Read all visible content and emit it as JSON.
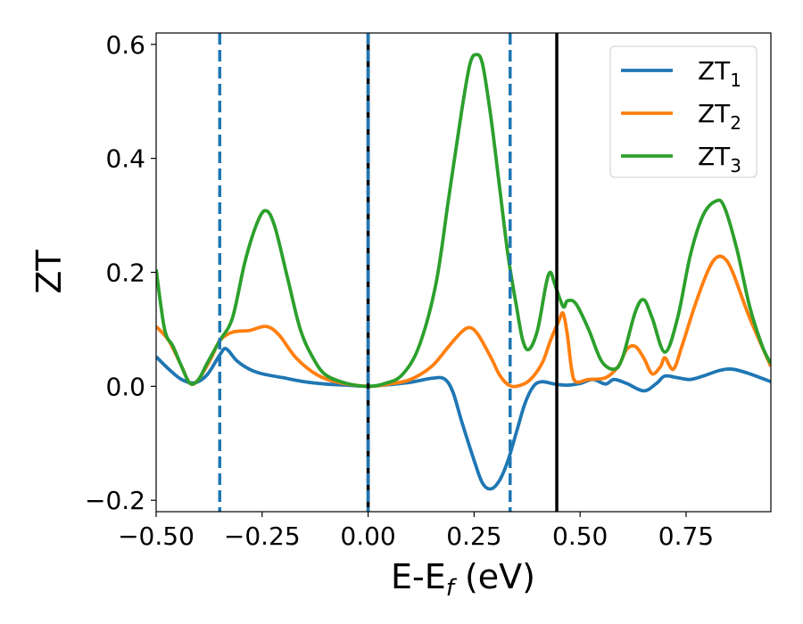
{
  "chart_data": {
    "type": "line",
    "xlabel": {
      "main": "E-E",
      "sub": "f",
      "rest": " (eV)"
    },
    "ylabel": "ZT",
    "xlim": [
      -0.5,
      0.95
    ],
    "ylim": [
      -0.22,
      0.62
    ],
    "xticks": [
      -0.5,
      -0.25,
      0.0,
      0.25,
      0.5,
      0.75
    ],
    "xtick_labels": [
      "−0.50",
      "−0.25",
      "0.00",
      "0.25",
      "0.50",
      "0.75"
    ],
    "yticks": [
      -0.2,
      0.0,
      0.2,
      0.4,
      0.6
    ],
    "ytick_labels": [
      "−0.2",
      "0.0",
      "0.2",
      "0.4",
      "0.6"
    ],
    "grid": false,
    "legend_position": "top-right",
    "vlines": [
      {
        "x": -0.35,
        "style": "dashed",
        "color": "#1f77b4"
      },
      {
        "x": 0.0,
        "style": "solid",
        "color": "#000000"
      },
      {
        "x": 0.0,
        "style": "dashed",
        "color": "#1f77b4"
      },
      {
        "x": 0.335,
        "style": "dashed",
        "color": "#1f77b4"
      },
      {
        "x": 0.445,
        "style": "solid",
        "color": "#000000"
      }
    ],
    "series": [
      {
        "name": "ZT",
        "sub": "1",
        "color": "#1f77b4",
        "points": [
          [
            -0.5,
            0.052
          ],
          [
            -0.47,
            0.03
          ],
          [
            -0.44,
            0.012
          ],
          [
            -0.41,
            0.006
          ],
          [
            -0.38,
            0.02
          ],
          [
            -0.35,
            0.055
          ],
          [
            -0.335,
            0.066
          ],
          [
            -0.31,
            0.045
          ],
          [
            -0.28,
            0.03
          ],
          [
            -0.25,
            0.022
          ],
          [
            -0.2,
            0.015
          ],
          [
            -0.15,
            0.008
          ],
          [
            -0.1,
            0.004
          ],
          [
            -0.05,
            0.002
          ],
          [
            0.0,
            0.0
          ],
          [
            0.05,
            0.003
          ],
          [
            0.1,
            0.007
          ],
          [
            0.15,
            0.014
          ],
          [
            0.18,
            0.013
          ],
          [
            0.2,
            -0.01
          ],
          [
            0.22,
            -0.06
          ],
          [
            0.25,
            -0.13
          ],
          [
            0.27,
            -0.17
          ],
          [
            0.29,
            -0.18
          ],
          [
            0.31,
            -0.165
          ],
          [
            0.33,
            -0.13
          ],
          [
            0.35,
            -0.08
          ],
          [
            0.37,
            -0.03
          ],
          [
            0.39,
            0.0
          ],
          [
            0.41,
            0.008
          ],
          [
            0.44,
            0.004
          ],
          [
            0.47,
            0.002
          ],
          [
            0.5,
            0.005
          ],
          [
            0.53,
            0.012
          ],
          [
            0.56,
            0.004
          ],
          [
            0.58,
            0.012
          ],
          [
            0.61,
            0.005
          ],
          [
            0.65,
            -0.008
          ],
          [
            0.68,
            0.005
          ],
          [
            0.7,
            0.018
          ],
          [
            0.73,
            0.015
          ],
          [
            0.76,
            0.012
          ],
          [
            0.79,
            0.018
          ],
          [
            0.83,
            0.028
          ],
          [
            0.86,
            0.03
          ],
          [
            0.9,
            0.022
          ],
          [
            0.95,
            0.008
          ]
        ]
      },
      {
        "name": "ZT",
        "sub": "2",
        "color": "#ff7f0e",
        "points": [
          [
            -0.5,
            0.105
          ],
          [
            -0.47,
            0.08
          ],
          [
            -0.44,
            0.035
          ],
          [
            -0.42,
            0.005
          ],
          [
            -0.4,
            0.012
          ],
          [
            -0.37,
            0.05
          ],
          [
            -0.35,
            0.08
          ],
          [
            -0.32,
            0.095
          ],
          [
            -0.28,
            0.098
          ],
          [
            -0.24,
            0.105
          ],
          [
            -0.21,
            0.09
          ],
          [
            -0.17,
            0.05
          ],
          [
            -0.12,
            0.02
          ],
          [
            -0.07,
            0.007
          ],
          [
            0.0,
            0.0
          ],
          [
            0.05,
            0.004
          ],
          [
            0.1,
            0.012
          ],
          [
            0.15,
            0.035
          ],
          [
            0.19,
            0.07
          ],
          [
            0.22,
            0.095
          ],
          [
            0.24,
            0.103
          ],
          [
            0.26,
            0.09
          ],
          [
            0.29,
            0.05
          ],
          [
            0.31,
            0.02
          ],
          [
            0.33,
            0.003
          ],
          [
            0.35,
            0.0
          ],
          [
            0.38,
            0.01
          ],
          [
            0.41,
            0.04
          ],
          [
            0.43,
            0.08
          ],
          [
            0.45,
            0.115
          ],
          [
            0.46,
            0.128
          ],
          [
            0.47,
            0.09
          ],
          [
            0.48,
            0.03
          ],
          [
            0.49,
            0.008
          ],
          [
            0.52,
            0.012
          ],
          [
            0.56,
            0.015
          ],
          [
            0.59,
            0.035
          ],
          [
            0.61,
            0.065
          ],
          [
            0.63,
            0.07
          ],
          [
            0.65,
            0.05
          ],
          [
            0.67,
            0.022
          ],
          [
            0.69,
            0.035
          ],
          [
            0.7,
            0.05
          ],
          [
            0.72,
            0.03
          ],
          [
            0.74,
            0.07
          ],
          [
            0.77,
            0.14
          ],
          [
            0.8,
            0.2
          ],
          [
            0.82,
            0.225
          ],
          [
            0.84,
            0.225
          ],
          [
            0.86,
            0.2
          ],
          [
            0.9,
            0.12
          ],
          [
            0.95,
            0.035
          ]
        ]
      },
      {
        "name": "ZT",
        "sub": "3",
        "color": "#2ca02c",
        "points": [
          [
            -0.5,
            0.205
          ],
          [
            -0.48,
            0.1
          ],
          [
            -0.46,
            0.07
          ],
          [
            -0.44,
            0.035
          ],
          [
            -0.42,
            0.005
          ],
          [
            -0.4,
            0.012
          ],
          [
            -0.38,
            0.04
          ],
          [
            -0.35,
            0.08
          ],
          [
            -0.32,
            0.12
          ],
          [
            -0.29,
            0.22
          ],
          [
            -0.26,
            0.29
          ],
          [
            -0.24,
            0.308
          ],
          [
            -0.22,
            0.28
          ],
          [
            -0.19,
            0.19
          ],
          [
            -0.16,
            0.1
          ],
          [
            -0.13,
            0.05
          ],
          [
            -0.1,
            0.02
          ],
          [
            -0.05,
            0.005
          ],
          [
            0.0,
            0.0
          ],
          [
            0.04,
            0.005
          ],
          [
            0.08,
            0.02
          ],
          [
            0.12,
            0.07
          ],
          [
            0.16,
            0.18
          ],
          [
            0.19,
            0.33
          ],
          [
            0.22,
            0.48
          ],
          [
            0.24,
            0.565
          ],
          [
            0.255,
            0.582
          ],
          [
            0.27,
            0.565
          ],
          [
            0.29,
            0.47
          ],
          [
            0.31,
            0.35
          ],
          [
            0.33,
            0.23
          ],
          [
            0.35,
            0.14
          ],
          [
            0.365,
            0.08
          ],
          [
            0.38,
            0.065
          ],
          [
            0.4,
            0.1
          ],
          [
            0.42,
            0.18
          ],
          [
            0.43,
            0.2
          ],
          [
            0.44,
            0.18
          ],
          [
            0.46,
            0.14
          ],
          [
            0.47,
            0.15
          ],
          [
            0.49,
            0.145
          ],
          [
            0.52,
            0.1
          ],
          [
            0.55,
            0.045
          ],
          [
            0.58,
            0.03
          ],
          [
            0.6,
            0.05
          ],
          [
            0.63,
            0.13
          ],
          [
            0.65,
            0.152
          ],
          [
            0.67,
            0.12
          ],
          [
            0.7,
            0.06
          ],
          [
            0.73,
            0.12
          ],
          [
            0.76,
            0.23
          ],
          [
            0.79,
            0.3
          ],
          [
            0.82,
            0.325
          ],
          [
            0.84,
            0.315
          ],
          [
            0.87,
            0.24
          ],
          [
            0.9,
            0.14
          ],
          [
            0.93,
            0.07
          ],
          [
            0.95,
            0.04
          ]
        ]
      }
    ]
  }
}
